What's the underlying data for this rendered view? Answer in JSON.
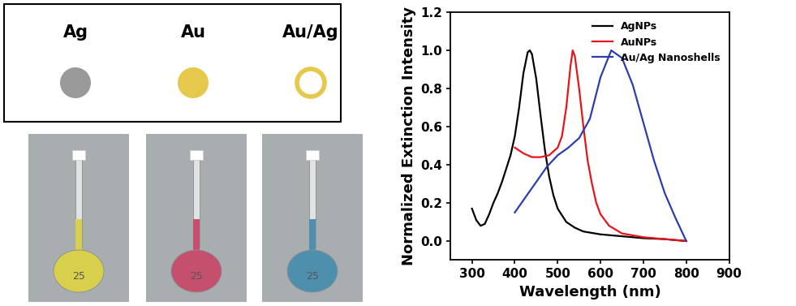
{
  "schematic": {
    "labels": [
      "Ag",
      "Au",
      "Au/Ag"
    ]
  },
  "photos": {
    "flask_label": "25"
  },
  "chart_data": {
    "type": "line",
    "x_label": "Wavelength (nm)",
    "y_label": "Normalized Extinction Intensity",
    "xlim": [
      250,
      900
    ],
    "xticks": [
      300,
      400,
      500,
      600,
      700,
      800,
      900
    ],
    "ylim": [
      -0.1,
      1.2
    ],
    "yticks": [
      0.0,
      0.2,
      0.4,
      0.6,
      0.8,
      1.0,
      1.2
    ],
    "legend": "upper right",
    "series": [
      {
        "name": "AgNPs",
        "color": "#000000",
        "x": [
          300,
          310,
          320,
          330,
          340,
          350,
          360,
          370,
          380,
          390,
          400,
          410,
          420,
          430,
          435,
          440,
          450,
          460,
          470,
          480,
          490,
          500,
          520,
          540,
          560,
          600,
          650,
          700,
          750,
          800
        ],
        "values": [
          0.17,
          0.11,
          0.08,
          0.09,
          0.14,
          0.2,
          0.25,
          0.31,
          0.38,
          0.45,
          0.55,
          0.7,
          0.88,
          0.99,
          1.0,
          0.98,
          0.85,
          0.66,
          0.48,
          0.34,
          0.24,
          0.17,
          0.1,
          0.07,
          0.05,
          0.035,
          0.025,
          0.015,
          0.01,
          0.0
        ]
      },
      {
        "name": "AuNPs",
        "color": "#e8141b",
        "x": [
          400,
          420,
          440,
          460,
          480,
          500,
          510,
          520,
          530,
          535,
          540,
          550,
          560,
          570,
          580,
          590,
          600,
          620,
          650,
          700,
          750,
          800
        ],
        "values": [
          0.49,
          0.46,
          0.44,
          0.44,
          0.45,
          0.49,
          0.55,
          0.7,
          0.92,
          1.0,
          0.97,
          0.8,
          0.6,
          0.42,
          0.3,
          0.2,
          0.14,
          0.08,
          0.04,
          0.02,
          0.01,
          0.0
        ]
      },
      {
        "name": "Au/Ag Nanoshells",
        "color": "#2b3fa8",
        "x": [
          400,
          425,
          450,
          475,
          500,
          525,
          550,
          575,
          600,
          625,
          650,
          675,
          700,
          725,
          750,
          775,
          800
        ],
        "values": [
          0.15,
          0.23,
          0.31,
          0.39,
          0.45,
          0.49,
          0.54,
          0.64,
          0.86,
          1.0,
          0.96,
          0.82,
          0.62,
          0.42,
          0.25,
          0.12,
          0.0
        ]
      }
    ]
  }
}
